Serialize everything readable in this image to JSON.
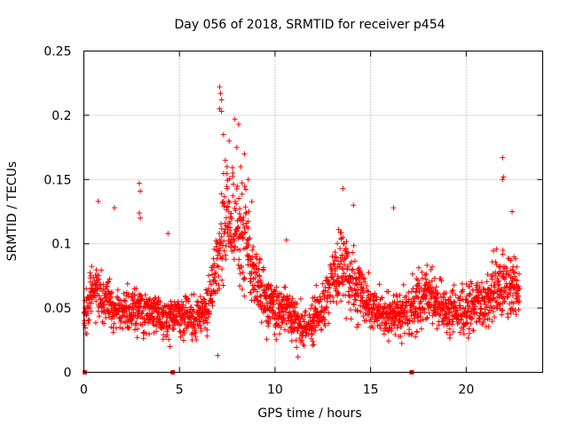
{
  "chart_data": {
    "type": "scatter",
    "title": "Day 056 of 2018, SRMTID for receiver p454",
    "xlabel": "GPS time / hours",
    "ylabel": "SRMTID / TECUs",
    "xlim": [
      0,
      24
    ],
    "ylim": [
      0,
      0.25
    ],
    "xticks": [
      0,
      5,
      10,
      15,
      20
    ],
    "xtick_labels": [
      "0",
      "5",
      "10",
      "15",
      "20"
    ],
    "yticks": [
      0,
      0.05,
      0.1,
      0.15,
      0.2,
      0.25
    ],
    "ytick_labels": [
      "0",
      "0.05",
      "0.1",
      "0.15",
      "0.2",
      "0.25"
    ],
    "grid": true,
    "marker": "+",
    "color": "#ff0000",
    "zero_markers_x": [
      0.05,
      4.65,
      17.15
    ],
    "series": [
      {
        "name": "SRMTID",
        "profile": [
          {
            "x": 0.0,
            "y": 0.045
          },
          {
            "x": 0.5,
            "y": 0.065
          },
          {
            "x": 1.0,
            "y": 0.06
          },
          {
            "x": 1.5,
            "y": 0.05
          },
          {
            "x": 2.0,
            "y": 0.048
          },
          {
            "x": 3.0,
            "y": 0.05
          },
          {
            "x": 4.0,
            "y": 0.045
          },
          {
            "x": 5.0,
            "y": 0.042
          },
          {
            "x": 6.0,
            "y": 0.042
          },
          {
            "x": 6.5,
            "y": 0.055
          },
          {
            "x": 7.0,
            "y": 0.085
          },
          {
            "x": 7.5,
            "y": 0.12
          },
          {
            "x": 8.0,
            "y": 0.115
          },
          {
            "x": 8.5,
            "y": 0.1
          },
          {
            "x": 9.0,
            "y": 0.07
          },
          {
            "x": 9.5,
            "y": 0.055
          },
          {
            "x": 10.0,
            "y": 0.048
          },
          {
            "x": 10.5,
            "y": 0.05
          },
          {
            "x": 11.0,
            "y": 0.04
          },
          {
            "x": 11.5,
            "y": 0.035
          },
          {
            "x": 12.0,
            "y": 0.04
          },
          {
            "x": 12.5,
            "y": 0.055
          },
          {
            "x": 13.0,
            "y": 0.075
          },
          {
            "x": 13.5,
            "y": 0.08
          },
          {
            "x": 14.0,
            "y": 0.07
          },
          {
            "x": 14.5,
            "y": 0.065
          },
          {
            "x": 15.0,
            "y": 0.05
          },
          {
            "x": 16.0,
            "y": 0.042
          },
          {
            "x": 17.0,
            "y": 0.048
          },
          {
            "x": 18.0,
            "y": 0.06
          },
          {
            "x": 19.0,
            "y": 0.048
          },
          {
            "x": 20.0,
            "y": 0.048
          },
          {
            "x": 21.0,
            "y": 0.055
          },
          {
            "x": 21.5,
            "y": 0.065
          },
          {
            "x": 22.0,
            "y": 0.07
          },
          {
            "x": 22.5,
            "y": 0.07
          },
          {
            "x": 22.8,
            "y": 0.06
          }
        ],
        "highlights": [
          {
            "x": 7.1,
            "y": 0.222
          },
          {
            "x": 7.15,
            "y": 0.217
          },
          {
            "x": 7.2,
            "y": 0.212
          },
          {
            "x": 7.1,
            "y": 0.205
          },
          {
            "x": 7.2,
            "y": 0.203
          },
          {
            "x": 7.9,
            "y": 0.197
          },
          {
            "x": 8.1,
            "y": 0.193
          },
          {
            "x": 7.3,
            "y": 0.185
          },
          {
            "x": 7.6,
            "y": 0.18
          },
          {
            "x": 8.0,
            "y": 0.175
          },
          {
            "x": 8.4,
            "y": 0.17
          },
          {
            "x": 7.4,
            "y": 0.165
          },
          {
            "x": 8.2,
            "y": 0.16
          },
          {
            "x": 7.8,
            "y": 0.155
          },
          {
            "x": 8.6,
            "y": 0.15
          },
          {
            "x": 2.9,
            "y": 0.147
          },
          {
            "x": 2.95,
            "y": 0.141
          },
          {
            "x": 2.9,
            "y": 0.124
          },
          {
            "x": 2.95,
            "y": 0.12
          },
          {
            "x": 13.55,
            "y": 0.143
          },
          {
            "x": 14.1,
            "y": 0.13
          },
          {
            "x": 16.2,
            "y": 0.128
          },
          {
            "x": 21.9,
            "y": 0.167
          },
          {
            "x": 21.95,
            "y": 0.152
          },
          {
            "x": 21.9,
            "y": 0.15
          },
          {
            "x": 22.4,
            "y": 0.125
          },
          {
            "x": 0.75,
            "y": 0.133
          },
          {
            "x": 1.6,
            "y": 0.128
          },
          {
            "x": 4.4,
            "y": 0.108
          },
          {
            "x": 10.6,
            "y": 0.103
          },
          {
            "x": 11.2,
            "y": 0.012
          },
          {
            "x": 7.0,
            "y": 0.013
          },
          {
            "x": 4.5,
            "y": 0.02
          }
        ]
      }
    ]
  }
}
